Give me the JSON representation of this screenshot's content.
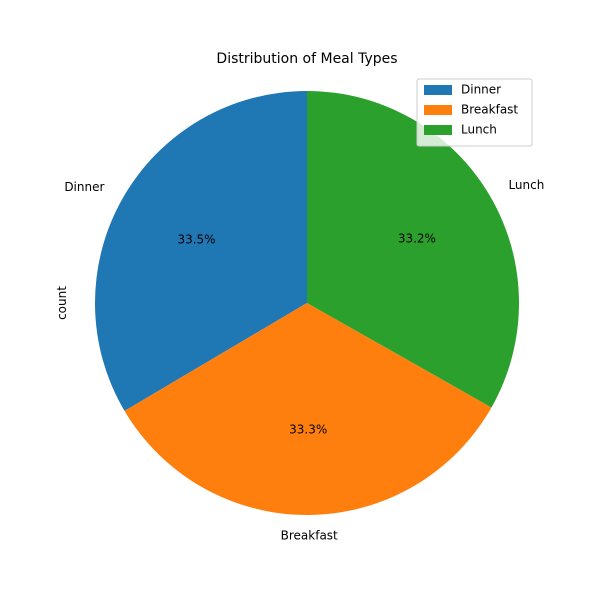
{
  "chart_data": {
    "type": "pie",
    "title": "Distribution of Meal Types",
    "ylabel": "count",
    "start_angle_deg": 90,
    "direction": "counterclockwise",
    "slices": [
      {
        "label": "Dinner",
        "value": 33.5,
        "pct_text": "33.5%",
        "color": "#1f77b4"
      },
      {
        "label": "Breakfast",
        "value": 33.3,
        "pct_text": "33.3%",
        "color": "#ff7f0e"
      },
      {
        "label": "Lunch",
        "value": 33.2,
        "pct_text": "33.2%",
        "color": "#2ca02c"
      }
    ],
    "legend": {
      "placement": "top-right",
      "entries": [
        "Dinner",
        "Breakfast",
        "Lunch"
      ]
    }
  }
}
